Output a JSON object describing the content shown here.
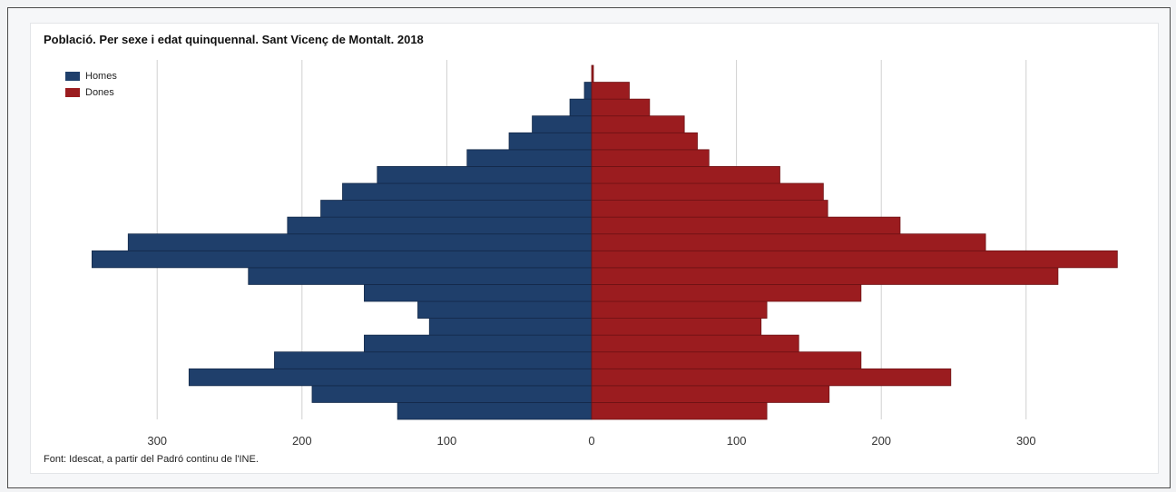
{
  "colors": {
    "men": "#1f3f6b",
    "women": "#9b1c1f",
    "grid": "#d0d0d0"
  },
  "title": "Població. Per sexe i edat quinquennal. Sant Vicenç de Montalt. 2018",
  "legend": {
    "men": "Homes",
    "women": "Dones"
  },
  "source": "Font: Idescat, a partir del Padró continu de l'INE.",
  "chart_data": {
    "type": "bar",
    "orientation": "horizontal-population-pyramid",
    "title": "Població. Per sexe i edat quinquennal. Sant Vicenç de Montalt. 2018",
    "xlim": [
      -345,
      365
    ],
    "xticks": [
      {
        "value": -300,
        "label": "300"
      },
      {
        "value": -200,
        "label": "200"
      },
      {
        "value": -100,
        "label": "100"
      },
      {
        "value": 0,
        "label": "0"
      },
      {
        "value": 100,
        "label": "100"
      },
      {
        "value": 200,
        "label": "200"
      },
      {
        "value": 300,
        "label": "300"
      }
    ],
    "grid": true,
    "legend_position": "top-left",
    "series": [
      {
        "name": "Homes",
        "values": [
          134,
          193,
          278,
          219,
          157,
          112,
          120,
          157,
          237,
          345,
          320,
          210,
          187,
          172,
          148,
          86,
          57,
          41,
          15,
          5,
          0
        ]
      },
      {
        "name": "Dones",
        "values": [
          121,
          164,
          248,
          186,
          143,
          117,
          121,
          186,
          322,
          363,
          272,
          213,
          163,
          160,
          130,
          81,
          73,
          64,
          40,
          26,
          1
        ]
      }
    ]
  }
}
